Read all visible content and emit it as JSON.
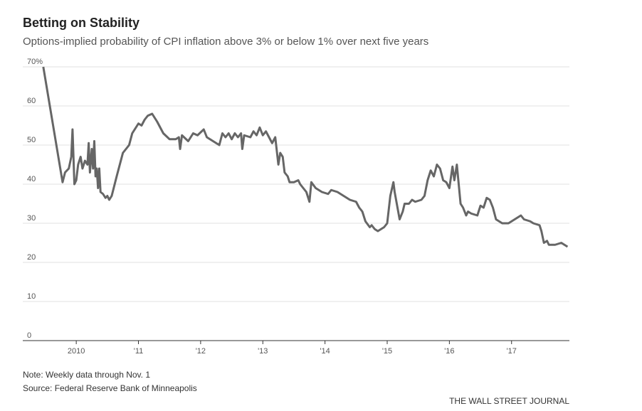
{
  "chart_data": {
    "type": "line",
    "title": "Betting on Stability",
    "subtitle": "Options-implied probability of CPI inflation above 3% or below 1% over next five years",
    "note": "Note: Weekly data through Nov. 1",
    "source": "Source: Federal Reserve Bank of Minneapolis",
    "credit": "THE WALL STREET JOURNAL",
    "xlim": [
      2009.14,
      2017.93
    ],
    "xticks": [
      2010,
      {
        "value": 2011,
        "label": "'11"
      },
      {
        "value": 2012,
        "label": "'12"
      },
      {
        "value": 2013,
        "label": "'13"
      },
      {
        "value": 2014,
        "label": "'14"
      },
      {
        "value": 2015,
        "label": "'15"
      },
      {
        "value": 2016,
        "label": "'16"
      },
      {
        "value": 2017,
        "label": "'17"
      }
    ],
    "ylim": [
      0,
      70
    ],
    "yticks": [
      0,
      10,
      20,
      30,
      40,
      50,
      60,
      {
        "value": 70,
        "label": "70%"
      }
    ],
    "grid": true,
    "color": "#666666",
    "x": [
      2009.47,
      2009.78,
      2009.82,
      2009.88,
      2009.92,
      2009.94,
      2009.97,
      2010.0,
      2010.03,
      2010.07,
      2010.1,
      2010.14,
      2010.18,
      2010.2,
      2010.22,
      2010.25,
      2010.27,
      2010.29,
      2010.31,
      2010.33,
      2010.35,
      2010.37,
      2010.39,
      2010.43,
      2010.47,
      2010.5,
      2010.53,
      2010.57,
      2010.65,
      2010.75,
      2010.85,
      2010.9,
      2011.0,
      2011.05,
      2011.1,
      2011.15,
      2011.22,
      2011.3,
      2011.4,
      2011.5,
      2011.6,
      2011.65,
      2011.67,
      2011.7,
      2011.8,
      2011.88,
      2011.95,
      2012.05,
      2012.1,
      2012.2,
      2012.3,
      2012.35,
      2012.4,
      2012.45,
      2012.5,
      2012.55,
      2012.6,
      2012.65,
      2012.67,
      2012.7,
      2012.8,
      2012.85,
      2012.9,
      2012.95,
      2013.0,
      2013.05,
      2013.1,
      2013.15,
      2013.2,
      2013.25,
      2013.28,
      2013.32,
      2013.35,
      2013.4,
      2013.43,
      2013.5,
      2013.57,
      2013.6,
      2013.7,
      2013.75,
      2013.78,
      2013.85,
      2013.95,
      2014.05,
      2014.1,
      2014.2,
      2014.3,
      2014.4,
      2014.5,
      2014.55,
      2014.6,
      2014.65,
      2014.72,
      2014.75,
      2014.8,
      2014.85,
      2014.95,
      2015.0,
      2015.05,
      2015.1,
      2015.12,
      2015.2,
      2015.25,
      2015.28,
      2015.35,
      2015.4,
      2015.45,
      2015.55,
      2015.6,
      2015.65,
      2015.7,
      2015.75,
      2015.8,
      2015.85,
      2015.9,
      2015.95,
      2016.0,
      2016.05,
      2016.08,
      2016.12,
      2016.18,
      2016.22,
      2016.27,
      2016.3,
      2016.35,
      2016.45,
      2016.5,
      2016.55,
      2016.6,
      2016.65,
      2016.7,
      2016.75,
      2016.85,
      2016.95,
      2017.05,
      2017.1,
      2017.15,
      2017.2,
      2017.3,
      2017.35,
      2017.45,
      2017.48,
      2017.52,
      2017.57,
      2017.6,
      2017.7,
      2017.8,
      2017.85,
      2017.9
    ],
    "values": [
      70,
      40.5,
      43,
      44,
      47,
      54,
      40,
      41,
      45,
      47,
      44,
      46,
      45,
      50.5,
      43,
      49,
      44,
      51,
      42,
      44,
      39,
      44,
      38,
      37.5,
      36.5,
      37,
      36,
      37,
      42,
      48,
      50,
      53,
      55.5,
      55,
      56.5,
      57.5,
      58,
      56,
      53,
      51.5,
      51.5,
      52,
      49,
      52.5,
      51,
      53,
      52.5,
      54,
      52,
      51,
      50,
      53,
      52,
      53,
      51.5,
      53,
      52,
      53,
      49,
      52.5,
      52,
      53.5,
      52.5,
      54.5,
      52.5,
      53.5,
      52,
      50.5,
      52,
      45,
      48,
      47,
      43,
      42,
      40.5,
      40.5,
      41,
      40,
      38,
      35.5,
      40.5,
      39,
      38,
      37.5,
      38.5,
      38,
      37,
      36,
      35.5,
      34,
      33,
      30.5,
      29,
      29.5,
      28.5,
      28,
      29,
      30,
      37,
      40.5,
      38,
      31,
      33,
      35,
      35,
      36,
      35.5,
      36,
      37,
      41,
      43.5,
      42,
      45,
      44,
      41,
      40.5,
      39,
      44.5,
      41,
      45,
      35,
      34,
      32,
      33,
      32.5,
      32,
      34.5,
      34,
      36.5,
      36,
      34,
      31,
      30,
      30,
      31,
      31.5,
      32,
      31,
      30.5,
      30,
      29.5,
      28,
      25,
      25.5,
      24.5,
      24.5,
      25,
      24.5,
      24
    ]
  }
}
